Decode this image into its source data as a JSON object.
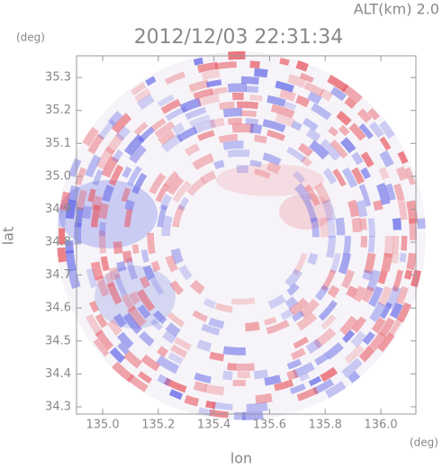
{
  "chart_data": {
    "type": "radar-image",
    "title": "2012/12/03 22:31:34",
    "subtitle": "ALT(km) 2.0",
    "x_label": "lon",
    "y_label": "lat",
    "x_unit": "(deg)",
    "y_unit": "(deg)",
    "xlim": [
      134.906,
      136.126
    ],
    "ylim": [
      34.278,
      35.366
    ],
    "xticks": [
      {
        "value": 135,
        "label": "135.0"
      },
      135.2,
      135.4,
      135.6,
      135.8,
      {
        "value": 136,
        "label": "136.0"
      }
    ],
    "yticks": [
      34.3,
      34.4,
      34.5,
      34.6,
      34.7,
      34.8,
      34.9,
      {
        "value": 35,
        "label": "35.0"
      },
      35.1,
      35.2,
      35.3
    ]
  }
}
